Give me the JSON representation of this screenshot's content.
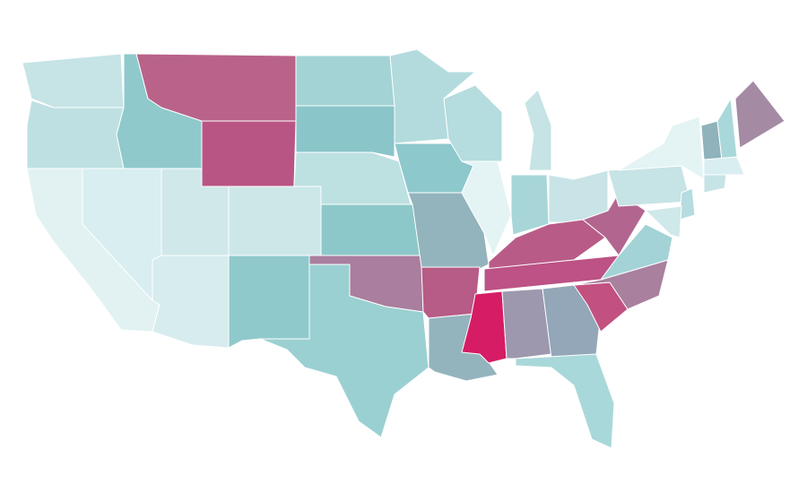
{
  "map": {
    "regions": [
      {
        "color": "#c6e3e5"
      },
      {
        "color": "#bfe0e2"
      },
      {
        "color": "#e2f2f3"
      },
      {
        "color": "#d8eef0"
      },
      {
        "color": "#8fc9cb"
      },
      {
        "color": "#b96389"
      },
      {
        "color": "#b95585"
      },
      {
        "color": "#d0e8ea"
      },
      {
        "color": "#cde7e8"
      },
      {
        "color": "#d7ecee"
      },
      {
        "color": "#8fc9cb"
      },
      {
        "color": "#a3d3d5"
      },
      {
        "color": "#8ac5ca"
      },
      {
        "color": "#bde0e1"
      },
      {
        "color": "#8cc8ca"
      },
      {
        "color": "#a97e9e"
      },
      {
        "color": "#9bd0d2"
      },
      {
        "color": "#b3dbdd"
      },
      {
        "color": "#8dc8cc"
      },
      {
        "color": "#93b4bd"
      },
      {
        "color": "#b75b87"
      },
      {
        "color": "#93b4bd"
      },
      {
        "color": "#b5dcde"
      },
      {
        "color": "#e4f3f4"
      },
      {
        "color": "#c6e3e5"
      },
      {
        "color": "#a8d6d8"
      },
      {
        "color": "#c9e4e6"
      },
      {
        "color": "#b95b87"
      },
      {
        "color": "#bc5285"
      },
      {
        "color": "#d61c64"
      },
      {
        "color": "#9d98ae"
      },
      {
        "color": "#93a7b8"
      },
      {
        "color": "#a9d8da"
      },
      {
        "color": "#c2517f"
      },
      {
        "color": "#a9809e"
      },
      {
        "color": "#a3d3d6"
      },
      {
        "color": "#b2668f"
      },
      {
        "color": "#c6e3e5"
      },
      {
        "color": "#e4f3f4"
      },
      {
        "color": "#a58aa4"
      },
      {
        "color": "#8fb2bb"
      },
      {
        "color": "#a9d8da"
      },
      {
        "color": "#d8eef0"
      },
      {
        "color": "#c6e3e5"
      },
      {
        "color": "#b5dcde"
      },
      {
        "color": "#cfe8ea"
      }
    ]
  }
}
